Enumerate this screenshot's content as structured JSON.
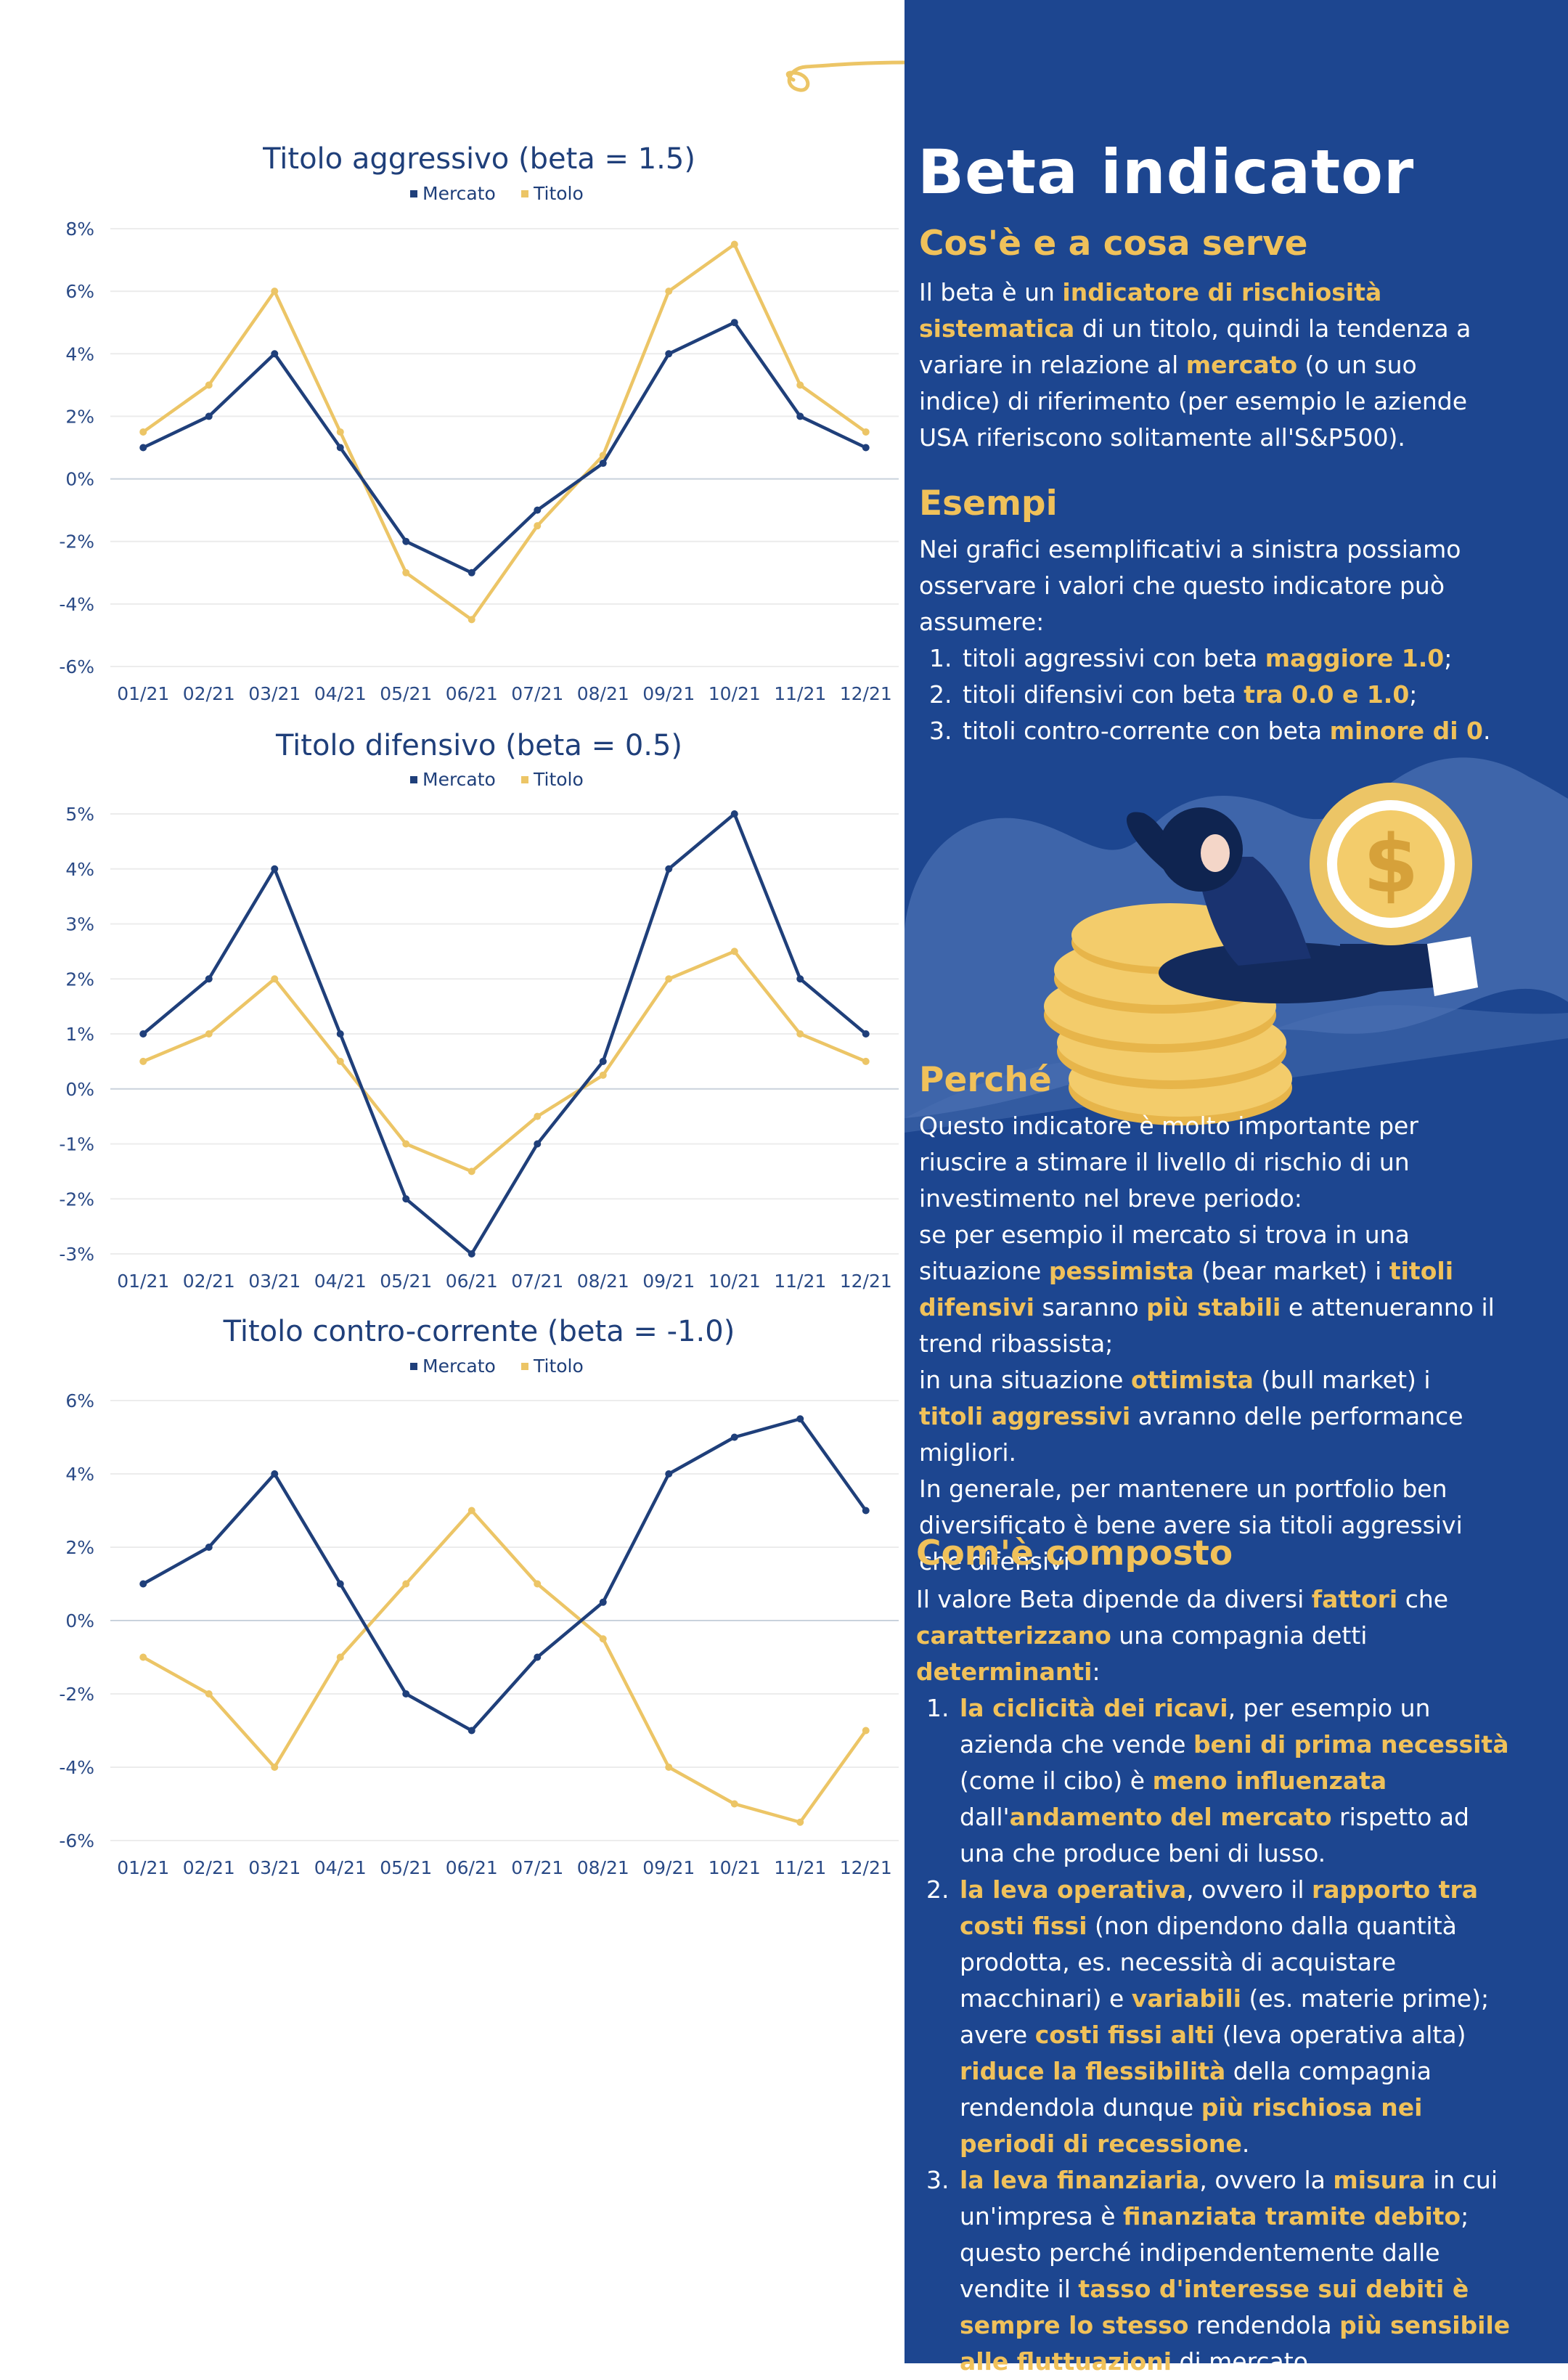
{
  "colors": {
    "navy": "#1d4690",
    "mercato": "#1f3f7a",
    "titolo": "#ecc566",
    "accent": "#f0c15a"
  },
  "chart_data": [
    {
      "type": "line",
      "title": "Titolo aggressivo (beta = 1.5)",
      "categories": [
        "01/21",
        "02/21",
        "03/21",
        "04/21",
        "05/21",
        "06/21",
        "07/21",
        "08/21",
        "09/21",
        "10/21",
        "11/21",
        "12/21"
      ],
      "series": [
        {
          "name": "Mercato",
          "values": [
            1,
            2,
            4,
            1,
            -2,
            -3,
            -1,
            0.5,
            4,
            5,
            2,
            1
          ]
        },
        {
          "name": "Titolo",
          "values": [
            1.5,
            3,
            6,
            1.5,
            -3,
            -4.5,
            -1.5,
            0.75,
            6,
            7.5,
            3,
            1.5
          ]
        }
      ],
      "ylim": [
        -6,
        8
      ],
      "yticks": [
        "8%",
        "6%",
        "4%",
        "2%",
        "0%",
        "-2%",
        "-4%",
        "-6%"
      ],
      "legend": "top-center"
    },
    {
      "type": "line",
      "title": "Titolo difensivo (beta = 0.5)",
      "categories": [
        "01/21",
        "02/21",
        "03/21",
        "04/21",
        "05/21",
        "06/21",
        "07/21",
        "08/21",
        "09/21",
        "10/21",
        "11/21",
        "12/21"
      ],
      "series": [
        {
          "name": "Mercato",
          "values": [
            1,
            2,
            4,
            1,
            -2,
            -3,
            -1,
            0.5,
            4,
            5,
            2,
            1
          ]
        },
        {
          "name": "Titolo",
          "values": [
            0.5,
            1,
            2,
            0.5,
            -1,
            -1.5,
            -0.5,
            0.25,
            2,
            2.5,
            1,
            0.5
          ]
        }
      ],
      "ylim": [
        -3,
        5
      ],
      "yticks": [
        "5%",
        "4%",
        "3%",
        "2%",
        "1%",
        "0%",
        "-1%",
        "-2%",
        "-3%"
      ],
      "legend": "top-center"
    },
    {
      "type": "line",
      "title": "Titolo contro-corrente (beta = -1.0)",
      "categories": [
        "01/21",
        "02/21",
        "03/21",
        "04/21",
        "05/21",
        "06/21",
        "07/21",
        "08/21",
        "09/21",
        "10/21",
        "11/21",
        "12/21"
      ],
      "series": [
        {
          "name": "Mercato",
          "values": [
            1,
            2,
            4,
            1,
            -2,
            -3,
            -1,
            0.5,
            4,
            5,
            5.5,
            3
          ]
        },
        {
          "name": "Titolo",
          "values": [
            -1,
            -2,
            -4,
            -1,
            1,
            3,
            1,
            -0.5,
            -4,
            -5,
            -5.5,
            -3
          ]
        }
      ],
      "ylim": [
        -6,
        6
      ],
      "yticks": [
        "6%",
        "4%",
        "2%",
        "0%",
        "-2%",
        "-4%",
        "-6%"
      ],
      "legend": "top-center"
    }
  ],
  "panel": {
    "title": "Beta indicator",
    "section1": {
      "heading": "Cos'è e a cosa serve",
      "html": "Il beta è un <b>indicatore di rischiosità sistematica</b> di un titolo, quindi la tendenza a variare in relazione al <b>mercato</b> (o un suo indice) di riferimento (per esempio le aziende USA riferiscono solitamente all'S&amp;P500)."
    },
    "section2": {
      "heading": "Esempi",
      "html": "Nei grafici esemplificativi a sinistra possiamo osservare i valori che questo indicatore può assumere:<ol><li>titoli aggressivi con beta <b>maggiore 1.0</b>;</li><li>titoli difensivi con beta <b>tra 0.0 e 1.0</b>;</li><li>titoli contro-corrente con beta <b>minore di 0</b>.</li></ol>"
    },
    "section3": {
      "heading": "Perché",
      "html": "Questo indicatore è molto importante per riuscire a stimare il livello di rischio di un investimento nel breve periodo:<br>se per esempio il mercato si trova in una situazione <b>pessimista</b> (bear market) i <b>titoli difensivi</b> saranno <b>più stabili</b> e attenueranno il trend ribassista;<br>in una situazione <b>ottimista</b> (bull market) i <b>titoli aggressivi</b> avranno delle performance migliori.<br>In generale, per mantenere un portfolio ben diversificato è bene avere sia titoli aggressivi che difensivi"
    },
    "section4": {
      "heading": "Com'è composto",
      "html": "Il valore Beta dipende da diversi <b>fattori</b> che <b>caratterizzano</b> una compagnia detti <b>determinanti</b>:<ol><li><b>la ciclicità dei ricavi</b>, per esempio un azienda che vende <b>beni di prima necessità</b> (come il cibo) è <b>meno influenzata</b> dall'<b>andamento del mercato</b> rispetto ad una che produce beni di lusso.</li><li><b>la leva operativa</b>, ovvero il <b>rapporto tra costi fissi</b> (non dipendono dalla quantità prodotta, es. necessità di acquistare macchinari) e <b>variabili</b> (es. materie prime); avere <b>costi fissi alti</b> (leva operativa alta) <b>riduce la flessibilità</b> della compagnia rendendola dunque <b>più rischiosa nei periodi di recessione</b>.</li><li><b>la leva finanziaria</b>, ovvero la <b>misura</b> in cui un'impresa è <b>finanziata tramite debito</b>; questo perché indipendentemente dalle vendite il <b>tasso d'interesse sui debiti è sempre lo stesso</b> rendendola <b>più sensibile alle fluttuazioni</b> di mercato.</li></ol>"
    },
    "illustration": {
      "coin_symbol": "$"
    }
  }
}
